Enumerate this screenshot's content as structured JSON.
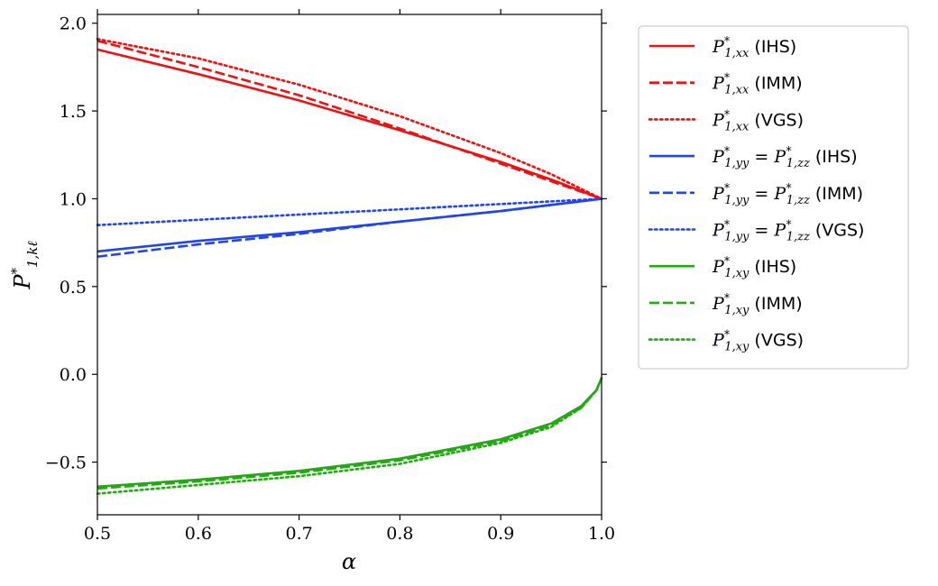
{
  "chart_data": {
    "type": "line",
    "title": "",
    "xlabel": "α",
    "ylabel": "P*1,kℓ",
    "xlim": [
      0.5,
      1.0
    ],
    "ylim": [
      -0.8,
      2.05
    ],
    "x_ticks": [
      "0.5",
      "0.6",
      "0.7",
      "0.8",
      "0.9",
      "1.0"
    ],
    "y_ticks": [
      "−0.5",
      "0.0",
      "0.5",
      "1.0",
      "1.5",
      "2.0"
    ],
    "grid": false,
    "legend_position": "outside-right",
    "series": [
      {
        "name": "P*1,xx (IHS)",
        "color": "#ee1111",
        "style": "solid",
        "x": [
          0.5,
          0.6,
          0.7,
          0.8,
          0.9,
          0.95,
          1.0
        ],
        "y": [
          1.85,
          1.71,
          1.56,
          1.39,
          1.21,
          1.11,
          1.0
        ]
      },
      {
        "name": "P*1,xx (IMM)",
        "color": "#ee1111",
        "style": "dashed",
        "x": [
          0.5,
          0.6,
          0.7,
          0.8,
          0.9,
          0.95,
          1.0
        ],
        "y": [
          1.9,
          1.75,
          1.59,
          1.4,
          1.2,
          1.1,
          1.0
        ]
      },
      {
        "name": "P*1,xx (VGS)",
        "color": "#ee1111",
        "style": "dotted",
        "x": [
          0.5,
          0.6,
          0.7,
          0.8,
          0.9,
          0.95,
          1.0
        ],
        "y": [
          1.91,
          1.8,
          1.65,
          1.47,
          1.26,
          1.14,
          1.0
        ]
      },
      {
        "name": "P*1,yy = P*1,zz (IHS)",
        "color": "#2244ee",
        "style": "solid",
        "x": [
          0.5,
          0.6,
          0.7,
          0.8,
          0.9,
          1.0
        ],
        "y": [
          0.7,
          0.76,
          0.81,
          0.87,
          0.93,
          1.0
        ]
      },
      {
        "name": "P*1,yy = P*1,zz (IMM)",
        "color": "#2244ee",
        "style": "dashed",
        "x": [
          0.5,
          0.6,
          0.7,
          0.8,
          0.9,
          1.0
        ],
        "y": [
          0.67,
          0.74,
          0.8,
          0.87,
          0.93,
          1.0
        ]
      },
      {
        "name": "P*1,yy = P*1,zz (VGS)",
        "color": "#2244ee",
        "style": "dotted",
        "x": [
          0.5,
          0.6,
          0.7,
          0.8,
          0.9,
          1.0
        ],
        "y": [
          0.85,
          0.88,
          0.91,
          0.94,
          0.97,
          1.0
        ]
      },
      {
        "name": "P*1,xy (IHS)",
        "color": "#22aa11",
        "style": "solid",
        "x": [
          0.5,
          0.6,
          0.7,
          0.8,
          0.9,
          0.95,
          0.98,
          0.995,
          1.0
        ],
        "y": [
          -0.64,
          -0.6,
          -0.55,
          -0.48,
          -0.37,
          -0.28,
          -0.18,
          -0.09,
          -0.02
        ]
      },
      {
        "name": "P*1,xy (IMM)",
        "color": "#22aa11",
        "style": "dashed",
        "x": [
          0.5,
          0.6,
          0.7,
          0.8,
          0.9,
          0.95,
          0.98,
          0.995,
          1.0
        ],
        "y": [
          -0.65,
          -0.61,
          -0.56,
          -0.49,
          -0.38,
          -0.29,
          -0.19,
          -0.09,
          -0.02
        ]
      },
      {
        "name": "P*1,xy (VGS)",
        "color": "#22aa11",
        "style": "dotted",
        "x": [
          0.5,
          0.6,
          0.7,
          0.8,
          0.9,
          0.95,
          0.98,
          0.995,
          1.0
        ],
        "y": [
          -0.68,
          -0.63,
          -0.58,
          -0.51,
          -0.39,
          -0.3,
          -0.19,
          -0.09,
          -0.02
        ]
      }
    ],
    "legend_items": [
      {
        "sub": "1,xx",
        "eq_sub": "",
        "method": "(IHS)",
        "color": "#ee1111",
        "style": "solid"
      },
      {
        "sub": "1,xx",
        "eq_sub": "",
        "method": "(IMM)",
        "color": "#ee1111",
        "style": "dashed"
      },
      {
        "sub": "1,xx",
        "eq_sub": "",
        "method": "(VGS)",
        "color": "#ee1111",
        "style": "dotted"
      },
      {
        "sub": "1,yy",
        "eq_sub": "1,zz",
        "method": "(IHS)",
        "color": "#2244ee",
        "style": "solid"
      },
      {
        "sub": "1,yy",
        "eq_sub": "1,zz",
        "method": "(IMM)",
        "color": "#2244ee",
        "style": "dashed"
      },
      {
        "sub": "1,yy",
        "eq_sub": "1,zz",
        "method": "(VGS)",
        "color": "#2244ee",
        "style": "dotted"
      },
      {
        "sub": "1,xy",
        "eq_sub": "",
        "method": "(IHS)",
        "color": "#22aa11",
        "style": "solid"
      },
      {
        "sub": "1,xy",
        "eq_sub": "",
        "method": "(IMM)",
        "color": "#22aa11",
        "style": "dashed"
      },
      {
        "sub": "1,xy",
        "eq_sub": "",
        "method": "(VGS)",
        "color": "#22aa11",
        "style": "dotted"
      }
    ]
  }
}
